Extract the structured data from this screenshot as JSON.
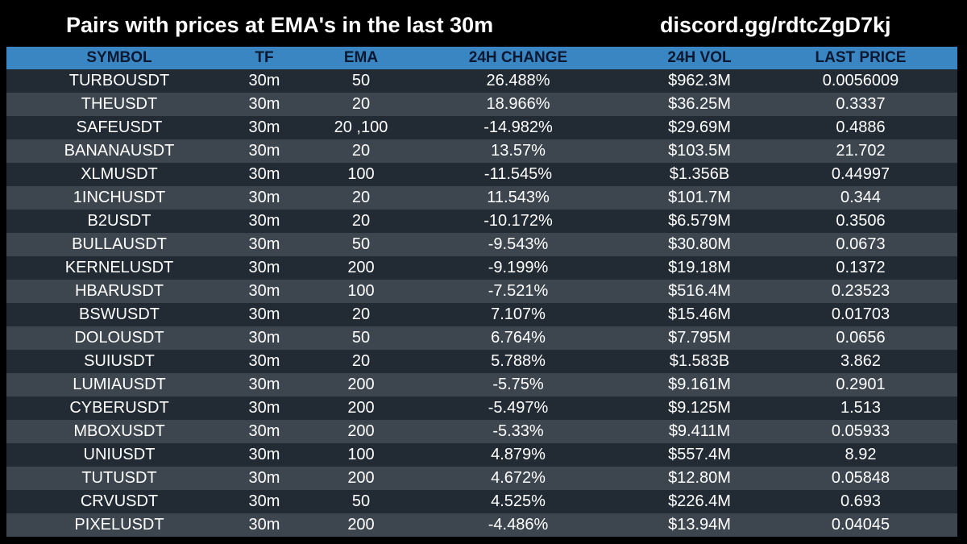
{
  "header": {
    "title": "Pairs with prices at EMA's in the last 30m",
    "link": "discord.gg/rdtcZgD7kj"
  },
  "colors": {
    "header_bg": "#3a86c2",
    "header_text": "#0b1830",
    "row_dark": "#222a33",
    "row_light": "#3d454e",
    "background": "#000000",
    "text": "#ffffff"
  },
  "table": {
    "columns": [
      "SYMBOL",
      "TF",
      "EMA",
      "24H CHANGE",
      "24H VOL",
      "LAST PRICE"
    ],
    "rows": [
      {
        "symbol": "TURBOUSDT",
        "tf": "30m",
        "ema": "50",
        "change": "26.488%",
        "vol": "$962.3M",
        "price": "0.0056009"
      },
      {
        "symbol": "THEUSDT",
        "tf": "30m",
        "ema": "20",
        "change": "18.966%",
        "vol": "$36.25M",
        "price": "0.3337"
      },
      {
        "symbol": "SAFEUSDT",
        "tf": "30m",
        "ema": "20 ,100",
        "change": "-14.982%",
        "vol": "$29.69M",
        "price": "0.4886"
      },
      {
        "symbol": "BANANAUSDT",
        "tf": "30m",
        "ema": "20",
        "change": "13.57%",
        "vol": "$103.5M",
        "price": "21.702"
      },
      {
        "symbol": "XLMUSDT",
        "tf": "30m",
        "ema": "100",
        "change": "-11.545%",
        "vol": "$1.356B",
        "price": "0.44997"
      },
      {
        "symbol": "1INCHUSDT",
        "tf": "30m",
        "ema": "20",
        "change": "11.543%",
        "vol": "$101.7M",
        "price": "0.344"
      },
      {
        "symbol": "B2USDT",
        "tf": "30m",
        "ema": "20",
        "change": "-10.172%",
        "vol": "$6.579M",
        "price": "0.3506"
      },
      {
        "symbol": "BULLAUSDT",
        "tf": "30m",
        "ema": "50",
        "change": "-9.543%",
        "vol": "$30.80M",
        "price": "0.0673"
      },
      {
        "symbol": "KERNELUSDT",
        "tf": "30m",
        "ema": "200",
        "change": "-9.199%",
        "vol": "$19.18M",
        "price": "0.1372"
      },
      {
        "symbol": "HBARUSDT",
        "tf": "30m",
        "ema": "100",
        "change": "-7.521%",
        "vol": "$516.4M",
        "price": "0.23523"
      },
      {
        "symbol": "BSWUSDT",
        "tf": "30m",
        "ema": "20",
        "change": "7.107%",
        "vol": "$15.46M",
        "price": "0.01703"
      },
      {
        "symbol": "DOLOUSDT",
        "tf": "30m",
        "ema": "50",
        "change": "6.764%",
        "vol": "$7.795M",
        "price": "0.0656"
      },
      {
        "symbol": "SUIUSDT",
        "tf": "30m",
        "ema": "20",
        "change": "5.788%",
        "vol": "$1.583B",
        "price": "3.862"
      },
      {
        "symbol": "LUMIAUSDT",
        "tf": "30m",
        "ema": "200",
        "change": "-5.75%",
        "vol": "$9.161M",
        "price": "0.2901"
      },
      {
        "symbol": "CYBERUSDT",
        "tf": "30m",
        "ema": "200",
        "change": "-5.497%",
        "vol": "$9.125M",
        "price": "1.513"
      },
      {
        "symbol": "MBOXUSDT",
        "tf": "30m",
        "ema": "200",
        "change": "-5.33%",
        "vol": "$9.411M",
        "price": "0.05933"
      },
      {
        "symbol": "UNIUSDT",
        "tf": "30m",
        "ema": "100",
        "change": "4.879%",
        "vol": "$557.4M",
        "price": "8.92"
      },
      {
        "symbol": "TUTUSDT",
        "tf": "30m",
        "ema": "200",
        "change": "4.672%",
        "vol": "$12.80M",
        "price": "0.05848"
      },
      {
        "symbol": "CRVUSDT",
        "tf": "30m",
        "ema": "50",
        "change": "4.525%",
        "vol": "$226.4M",
        "price": "0.693"
      },
      {
        "symbol": "PIXELUSDT",
        "tf": "30m",
        "ema": "200",
        "change": "-4.486%",
        "vol": "$13.94M",
        "price": "0.04045"
      }
    ]
  }
}
